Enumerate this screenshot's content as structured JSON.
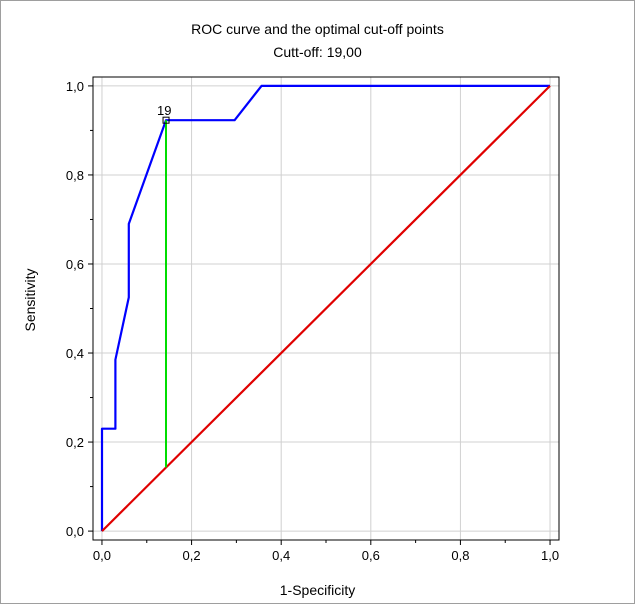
{
  "chart_data": {
    "type": "line",
    "title": "ROC curve and the optimal cut-off points",
    "subtitle": "Cutt-off: 19,00",
    "xlabel": "1-Specificity",
    "ylabel": "Sensitivity",
    "xlim": [
      -0.02,
      1.02
    ],
    "ylim": [
      -0.02,
      1.02
    ],
    "grid": true,
    "x_ticks": [
      "0,0",
      "0,2",
      "0,4",
      "0,6",
      "0,8",
      "1,0"
    ],
    "y_ticks": [
      "0,0",
      "0,2",
      "0,4",
      "0,6",
      "0,8",
      "1,0"
    ],
    "series": [
      {
        "color": "#0000ff",
        "x": [
          0,
          0,
          0.03,
          0.03,
          0.06,
          0.06,
          0.06,
          0.143,
          0.143,
          0.296,
          0.356,
          1.0
        ],
        "y": [
          0,
          0.23,
          0.23,
          0.385,
          0.525,
          0.535,
          0.69,
          0.923,
          0.923,
          0.923,
          1.0,
          1.0
        ]
      },
      {
        "color": "#e00000",
        "x": [
          0,
          1
        ],
        "y": [
          0,
          1
        ]
      },
      {
        "color": "#00dd00",
        "x": [
          0.143,
          0.143
        ],
        "y": [
          0.143,
          0.923
        ]
      }
    ],
    "annotations": [
      {
        "text": "19",
        "x": 0.143,
        "y": 0.923,
        "marker": "square"
      }
    ]
  }
}
